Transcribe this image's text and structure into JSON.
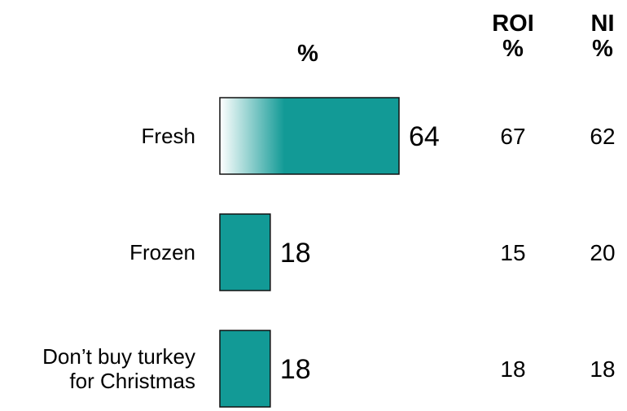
{
  "chart_data": {
    "type": "bar",
    "orientation": "horizontal",
    "categories": [
      [
        "Fresh"
      ],
      [
        "Frozen"
      ],
      [
        "Don’t buy turkey",
        "for Christmas"
      ]
    ],
    "values": [
      64,
      18,
      18
    ],
    "bar_header": "%",
    "columns": [
      {
        "header": [
          "ROI",
          "%"
        ],
        "values": [
          67,
          15,
          18
        ]
      },
      {
        "header": [
          "NI",
          "%"
        ],
        "values": [
          62,
          20,
          18
        ]
      }
    ],
    "xlim": [
      0,
      64
    ],
    "grid": false,
    "legend": "none"
  },
  "colors": {
    "bar_fill": "#129a96",
    "bar_edge": "#111111",
    "fade_start": "#ffffff"
  }
}
